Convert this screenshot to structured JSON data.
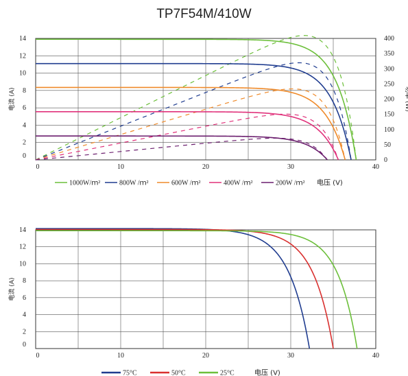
{
  "title": "TP7F54M/410W",
  "chart_data": [
    {
      "type": "line",
      "xlabel": "电压 (V)",
      "ylabel": "电流 (A)",
      "y2label": "功率 (W)",
      "xlim": [
        0,
        40
      ],
      "ylim": [
        0,
        14
      ],
      "y2lim": [
        0,
        400
      ],
      "xticks": [
        "0",
        "10",
        "20",
        "30",
        "40"
      ],
      "yticks": [
        "0",
        "2",
        "4",
        "6",
        "8",
        "10",
        "12",
        "14"
      ],
      "y2ticks": [
        "0",
        "50",
        "100",
        "150",
        "200",
        "250",
        "300",
        "350",
        "400"
      ],
      "grid": true,
      "legend_position": "bottom",
      "series": [
        {
          "name": "1000W/ｍ²",
          "color": "#6cbf3a",
          "isc": 13.9,
          "voc": 37.7,
          "knee": 0.06
        },
        {
          "name": "800W /ｍ²",
          "color": "#1f3c8f",
          "isc": 11.1,
          "voc": 37.1,
          "knee": 0.062
        },
        {
          "name": "600W /ｍ²",
          "color": "#ef8a2a",
          "isc": 8.35,
          "voc": 36.4,
          "knee": 0.065
        },
        {
          "name": "400W /ｍ²",
          "color": "#e0307a",
          "isc": 5.55,
          "voc": 35.6,
          "knee": 0.068
        },
        {
          "name": "200W /ｍ²",
          "color": "#6b1e6e",
          "isc": 2.75,
          "voc": 34.3,
          "knee": 0.07
        }
      ]
    },
    {
      "type": "line",
      "xlabel": "电压 (V)",
      "ylabel": "电流 (A)",
      "xlim": [
        0,
        40
      ],
      "ylim": [
        0,
        14
      ],
      "xticks": [
        "0",
        "10",
        "20",
        "30",
        "40"
      ],
      "yticks": [
        "0",
        "2",
        "4",
        "6",
        "8",
        "10",
        "12",
        "14"
      ],
      "grid": true,
      "legend_position": "bottom",
      "series": [
        {
          "name": "75°C",
          "color": "#1f3c8f",
          "isc": 14.15,
          "voc": 32.2,
          "knee": 0.075
        },
        {
          "name": "50°C",
          "color": "#d9302f",
          "isc": 14.05,
          "voc": 35.0,
          "knee": 0.068
        },
        {
          "name": "25°C",
          "color": "#6cbf3a",
          "isc": 13.9,
          "voc": 37.8,
          "knee": 0.06
        }
      ]
    }
  ]
}
